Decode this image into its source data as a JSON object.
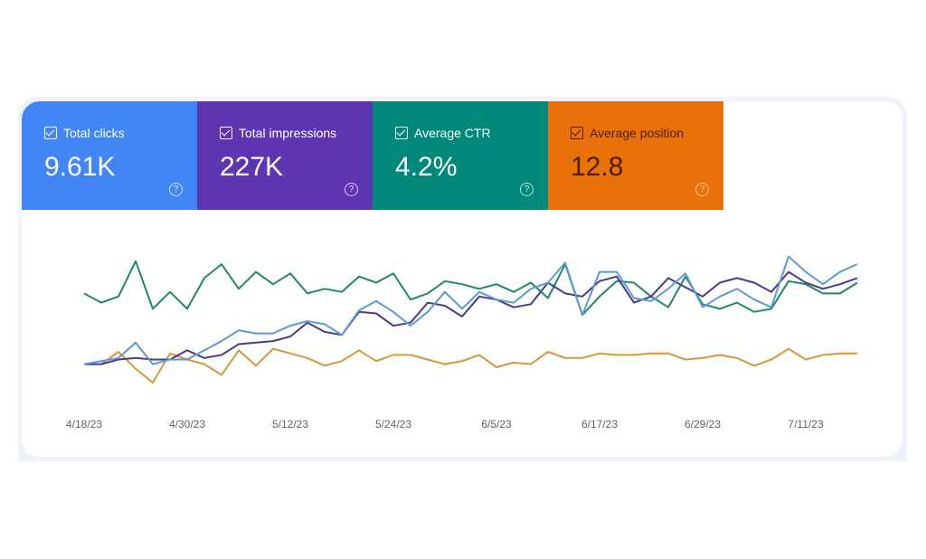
{
  "metrics": [
    {
      "label": "Total clicks",
      "value": "9.61K",
      "color": "#4285f4",
      "checked": true,
      "icon": "help-circle-icon"
    },
    {
      "label": "Total impressions",
      "value": "227K",
      "color": "#5e35b1",
      "checked": true,
      "icon": "help-circle-icon"
    },
    {
      "label": "Average CTR",
      "value": "4.2%",
      "color": "#00897b",
      "checked": true,
      "icon": "help-circle-icon"
    },
    {
      "label": "Average position",
      "value": "12.8",
      "color": "#e8710a",
      "checked": true,
      "icon": "help-circle-icon"
    }
  ],
  "chart_data": {
    "type": "line",
    "title": "",
    "xlabel": "",
    "ylabel": "",
    "y_axis_labels_shown": false,
    "y_scale": "relative (unlabeled, each series independently scaled)",
    "ylim": [
      0,
      100
    ],
    "grid": false,
    "legend": "none",
    "x_tick_labels": [
      "4/18/23",
      "4/30/23",
      "5/12/23",
      "5/24/23",
      "6/5/23",
      "6/17/23",
      "6/29/23",
      "7/11/23"
    ],
    "x": [
      "4/18/23",
      "4/20/23",
      "4/22/23",
      "4/24/23",
      "4/26/23",
      "4/28/23",
      "4/30/23",
      "5/2/23",
      "5/4/23",
      "5/6/23",
      "5/8/23",
      "5/10/23",
      "5/12/23",
      "5/14/23",
      "5/16/23",
      "5/18/23",
      "5/20/23",
      "5/22/23",
      "5/24/23",
      "5/26/23",
      "5/28/23",
      "5/30/23",
      "6/1/23",
      "6/3/23",
      "6/5/23",
      "6/7/23",
      "6/9/23",
      "6/11/23",
      "6/13/23",
      "6/15/23",
      "6/17/23",
      "6/19/23",
      "6/21/23",
      "6/23/23",
      "6/25/23",
      "6/27/23",
      "6/29/23",
      "7/1/23",
      "7/3/23",
      "7/5/23",
      "7/7/23",
      "7/9/23",
      "7/11/23",
      "7/13/23",
      "7/15/23",
      "7/17/23"
    ],
    "series": [
      {
        "metric": "Average CTR",
        "color": "#1e8a64",
        "values": [
          68,
          62,
          66,
          89,
          58,
          69,
          58,
          78,
          87,
          71,
          82,
          74,
          81,
          68,
          71,
          69,
          79,
          75,
          81,
          64,
          68,
          76,
          74,
          71,
          74,
          69,
          75,
          65,
          87,
          54,
          66,
          76,
          75,
          66,
          59,
          79,
          61,
          58,
          62,
          56,
          58,
          76,
          74,
          68,
          68,
          75
        ]
      },
      {
        "metric": "Average position",
        "color": "#d9963a",
        "values": [
          22,
          22,
          30,
          19,
          10,
          29,
          25,
          22,
          15,
          31,
          21,
          32,
          29,
          26,
          21,
          24,
          31,
          24,
          28,
          28,
          25,
          22,
          24,
          28,
          20,
          23,
          22,
          30,
          26,
          26,
          29,
          28,
          28,
          29,
          29,
          25,
          26,
          28,
          26,
          21,
          25,
          32,
          25,
          28,
          29,
          29
        ]
      },
      {
        "metric": "Total impressions",
        "color": "#4b3a8f",
        "values": [
          22,
          22,
          25,
          26,
          25,
          25,
          31,
          26,
          28,
          35,
          36,
          37,
          40,
          49,
          43,
          41,
          56,
          55,
          47,
          49,
          62,
          60,
          53,
          66,
          64,
          59,
          61,
          75,
          68,
          66,
          76,
          79,
          62,
          66,
          78,
          72,
          66,
          75,
          78,
          75,
          69,
          82,
          75,
          71,
          74,
          78
        ]
      },
      {
        "metric": "Total clicks",
        "color": "#5b9bd5",
        "values": [
          22,
          24,
          26,
          36,
          22,
          25,
          25,
          31,
          37,
          44,
          42,
          42,
          47,
          50,
          48,
          41,
          57,
          63,
          56,
          47,
          56,
          69,
          58,
          69,
          64,
          62,
          71,
          75,
          88,
          54,
          82,
          82,
          65,
          63,
          71,
          81,
          59,
          66,
          71,
          64,
          59,
          92,
          82,
          74,
          82,
          87
        ]
      }
    ]
  }
}
